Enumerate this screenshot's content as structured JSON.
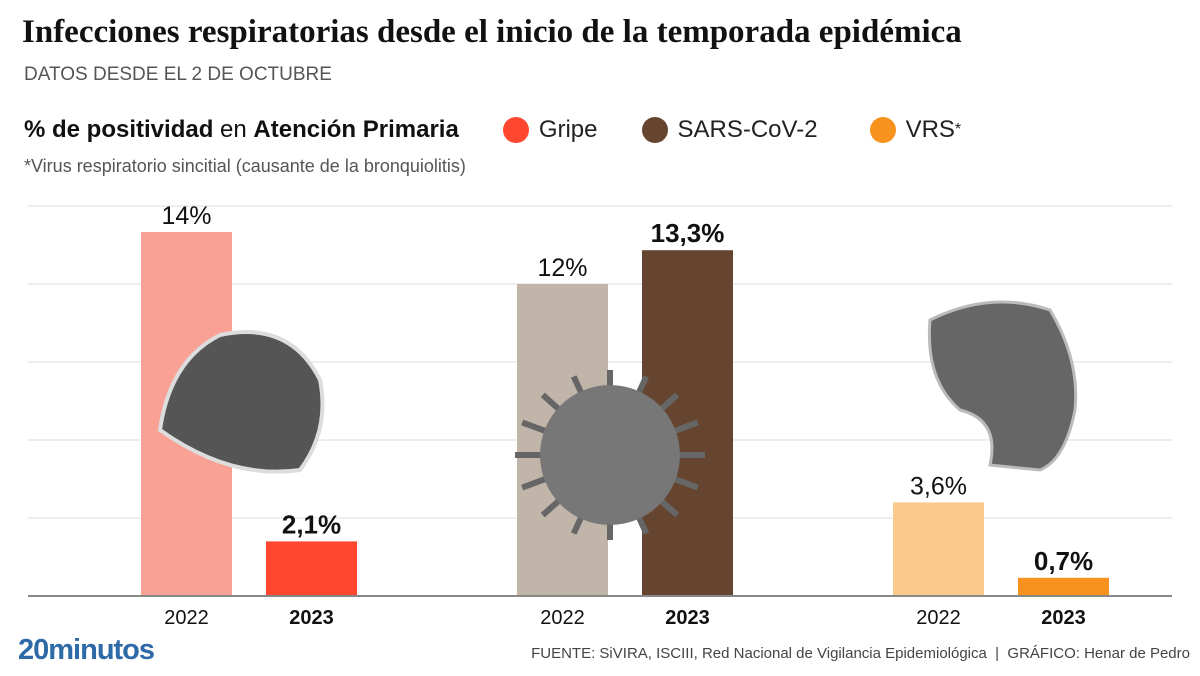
{
  "title": "Infecciones respiratorias desde el inicio de la temporada epidémica",
  "subtitle": "DATOS DESDE EL 2 DE OCTUBRE",
  "legend": {
    "label_bold1": "% de positividad",
    "label_mid": " en ",
    "label_bold2": "Atención Primaria",
    "items": [
      {
        "name": "Gripe",
        "color": "#fe472e"
      },
      {
        "name": "SARS-CoV-2",
        "color": "#654530"
      },
      {
        "name": "VRS",
        "color": "#f7921e",
        "sup": "*"
      }
    ]
  },
  "note": "*Virus respiratorio sincitial (causante de la bronquiolitis)",
  "chart_data": {
    "type": "bar",
    "ylim": [
      0,
      15
    ],
    "grid": true,
    "yticks": [
      0,
      3,
      6,
      9,
      12,
      15
    ],
    "groups": [
      {
        "name": "Gripe",
        "bars": [
          {
            "year": "2022",
            "value": 14,
            "label": "14%",
            "color": "#f9a194"
          },
          {
            "year": "2023",
            "value": 2.1,
            "label": "2,1%",
            "color": "#fe472e"
          }
        ]
      },
      {
        "name": "SARS-CoV-2",
        "bars": [
          {
            "year": "2022",
            "value": 12,
            "label": "12%",
            "color": "#c1b4a9"
          },
          {
            "year": "2023",
            "value": 13.3,
            "label": "13,3%",
            "color": "#654530"
          }
        ]
      },
      {
        "name": "VRS",
        "bars": [
          {
            "year": "2022",
            "value": 3.6,
            "label": "3,6%",
            "color": "#fbc98c"
          },
          {
            "year": "2023",
            "value": 0.7,
            "label": "0,7%",
            "color": "#f7921e"
          }
        ]
      }
    ]
  },
  "footer": {
    "logo": "20minutos",
    "source": "FUENTE: SiVIRA, ISCIII, Red Nacional de Vigilancia Epidemiológica  |  GRÁFICO: Henar de Pedro"
  }
}
